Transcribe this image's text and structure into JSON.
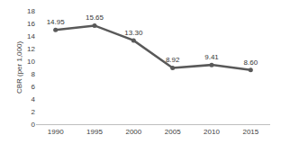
{
  "chart_data": {
    "type": "line",
    "y_label": "CBR (per 1,000)",
    "categories": [
      "1990",
      "1995",
      "2000",
      "2005",
      "2010",
      "2015"
    ],
    "values": [
      14.95,
      15.65,
      13.3,
      8.92,
      9.41,
      8.6
    ],
    "value_labels": [
      "14.95",
      "15.65",
      "13.30",
      "8.92",
      "9.41",
      "8.60"
    ],
    "color": "#595959",
    "marker": "circle",
    "line_style": "solid",
    "ylim": [
      0,
      18
    ],
    "yticks": [
      0,
      2,
      4,
      6,
      8,
      10,
      12,
      14,
      16,
      18
    ],
    "grid": false,
    "data_labels": true
  }
}
